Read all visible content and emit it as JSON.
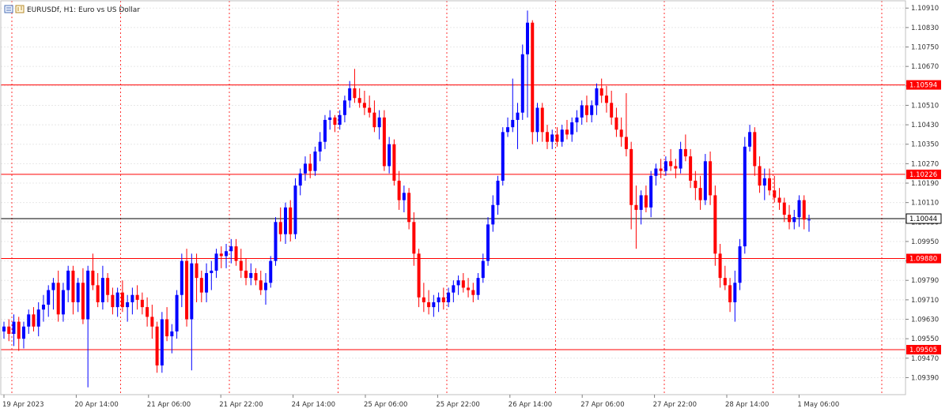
{
  "window": {
    "title": "EURUSDf, H1:  Euro vs US Dollar",
    "icon": "chart-window-icon"
  },
  "colors": {
    "bull": "#0000ff",
    "bear": "#ff0000",
    "grid": "#e8e8e8",
    "vgrid": "#ff0000",
    "level": "#ff0000",
    "current": "#000000",
    "axis": "#c0c0c0"
  },
  "chart_data": {
    "type": "candlestick",
    "symbol": "EURUSDf",
    "timeframe": "H1",
    "ylim": [
      1.0932,
      1.1094
    ],
    "y_ticks": [
      "1.10910",
      "1.10830",
      "1.10750",
      "1.10670",
      "1.10590",
      "1.10510",
      "1.10430",
      "1.10350",
      "1.10270",
      "1.10190",
      "1.10110",
      "1.10030",
      "1.09950",
      "1.09870",
      "1.09790",
      "1.09710",
      "1.09630",
      "1.09550",
      "1.09470",
      "1.09390"
    ],
    "x_labels": [
      "19 Apr 2023",
      "20 Apr 14:00",
      "21 Apr 06:00",
      "21 Apr 22:00",
      "24 Apr 14:00",
      "25 Apr 06:00",
      "25 Apr 22:00",
      "26 Apr 14:00",
      "27 Apr 06:00",
      "27 Apr 22:00",
      "28 Apr 14:00",
      "1 May 06:00"
    ],
    "levels": [
      {
        "price": 1.10594,
        "label": "1.10594"
      },
      {
        "price": 1.10226,
        "label": "1.10226"
      },
      {
        "price": 1.0988,
        "label": "1.09880"
      },
      {
        "price": 1.09505,
        "label": "1.09505"
      }
    ],
    "current": {
      "price": 1.10044,
      "label": "1.10044"
    },
    "candles": [
      [
        1.0958,
        1.0962,
        1.0955,
        1.096
      ],
      [
        1.096,
        1.0963,
        1.0954,
        1.0957
      ],
      [
        1.0957,
        1.0965,
        1.0952,
        1.0962
      ],
      [
        1.0962,
        1.0964,
        1.095,
        1.0955
      ],
      [
        1.0955,
        1.0962,
        1.0951,
        1.096
      ],
      [
        1.096,
        1.0967,
        1.0957,
        1.0965
      ],
      [
        1.0965,
        1.0968,
        1.0958,
        1.096
      ],
      [
        1.096,
        1.097,
        1.0956,
        1.0967
      ],
      [
        1.0967,
        1.0973,
        1.0962,
        1.0969
      ],
      [
        1.0969,
        1.0977,
        1.0964,
        1.0975
      ],
      [
        1.0975,
        1.098,
        1.0967,
        1.0978
      ],
      [
        1.0978,
        1.0983,
        1.0962,
        1.0965
      ],
      [
        1.0965,
        1.0978,
        1.0962,
        1.0975
      ],
      [
        1.0975,
        1.0985,
        1.097,
        1.0983
      ],
      [
        1.0983,
        1.0985,
        1.0965,
        1.097
      ],
      [
        1.097,
        1.098,
        1.0966,
        1.0978
      ],
      [
        1.0978,
        1.0984,
        1.0961,
        1.0963
      ],
      [
        1.0963,
        1.0985,
        1.0935,
        1.0983
      ],
      [
        1.0983,
        1.099,
        1.0975,
        1.0977
      ],
      [
        1.0977,
        1.0982,
        1.0968,
        1.097
      ],
      [
        1.097,
        1.0985,
        1.0967,
        1.098
      ],
      [
        1.098,
        1.0982,
        1.097,
        1.0973
      ],
      [
        1.0973,
        1.0976,
        1.0965,
        1.0968
      ],
      [
        1.0968,
        1.0976,
        1.0964,
        1.0974
      ],
      [
        1.0974,
        1.0979,
        1.0966,
        1.0968
      ],
      [
        1.0968,
        1.0973,
        1.0962,
        1.097
      ],
      [
        1.097,
        1.0976,
        1.0965,
        1.0973
      ],
      [
        1.0973,
        1.0977,
        1.0967,
        1.0971
      ],
      [
        1.0971,
        1.0974,
        1.0965,
        1.0968
      ],
      [
        1.0968,
        1.0972,
        1.096,
        1.0964
      ],
      [
        1.0964,
        1.0969,
        1.0955,
        1.096
      ],
      [
        1.096,
        1.0962,
        1.0941,
        1.0944
      ],
      [
        1.0944,
        1.0966,
        1.0941,
        1.0963
      ],
      [
        1.0963,
        1.0968,
        1.0954,
        1.0956
      ],
      [
        1.0956,
        1.0961,
        1.0949,
        1.0958
      ],
      [
        1.0958,
        1.0975,
        1.0955,
        1.0973
      ],
      [
        1.0973,
        1.099,
        1.0968,
        1.0987
      ],
      [
        1.0987,
        1.0992,
        1.096,
        1.0963
      ],
      [
        1.0963,
        1.099,
        1.0942,
        1.0986
      ],
      [
        1.0986,
        1.099,
        1.097,
        1.098
      ],
      [
        1.098,
        1.0983,
        1.097,
        1.0974
      ],
      [
        1.0974,
        1.0986,
        1.097,
        1.0982
      ],
      [
        1.0982,
        1.0987,
        1.0975,
        1.0983
      ],
      [
        1.0983,
        1.0992,
        1.098,
        1.099
      ],
      [
        1.099,
        1.0993,
        1.0984,
        1.0989
      ],
      [
        1.0989,
        1.0994,
        1.0984,
        1.0991
      ],
      [
        1.0991,
        1.0996,
        1.0986,
        1.0993
      ],
      [
        1.0993,
        1.0996,
        1.0985,
        1.0987
      ],
      [
        1.0987,
        1.0992,
        1.098,
        1.0983
      ],
      [
        1.0983,
        1.0988,
        1.0977,
        1.098
      ],
      [
        1.098,
        1.0986,
        1.0977,
        1.0982
      ],
      [
        1.0982,
        1.0984,
        1.0977,
        1.0979
      ],
      [
        1.0979,
        1.0983,
        1.0973,
        1.0975
      ],
      [
        1.0975,
        1.0982,
        1.0969,
        1.0978
      ],
      [
        1.0978,
        1.0989,
        1.0976,
        1.0987
      ],
      [
        1.0987,
        1.1005,
        1.0985,
        1.1003
      ],
      [
        1.1003,
        1.1009,
        1.0995,
        1.0998
      ],
      [
        1.0998,
        1.1011,
        1.0994,
        1.1009
      ],
      [
        1.1009,
        1.1012,
        1.0995,
        1.0998
      ],
      [
        1.0998,
        1.1021,
        1.0996,
        1.1018
      ],
      [
        1.1018,
        1.1025,
        1.1014,
        1.1023
      ],
      [
        1.1023,
        1.103,
        1.102,
        1.1027
      ],
      [
        1.1027,
        1.1031,
        1.1021,
        1.1024
      ],
      [
        1.1024,
        1.1034,
        1.1022,
        1.1032
      ],
      [
        1.1032,
        1.104,
        1.1028,
        1.1036
      ],
      [
        1.1036,
        1.1047,
        1.1033,
        1.1045
      ],
      [
        1.1045,
        1.1049,
        1.1041,
        1.1046
      ],
      [
        1.1046,
        1.1047,
        1.104,
        1.1043
      ],
      [
        1.1043,
        1.1049,
        1.1041,
        1.1047
      ],
      [
        1.1047,
        1.1055,
        1.1044,
        1.1053
      ],
      [
        1.1053,
        1.1061,
        1.105,
        1.1058
      ],
      [
        1.1058,
        1.1066,
        1.1052,
        1.1054
      ],
      [
        1.1054,
        1.1058,
        1.105,
        1.1052
      ],
      [
        1.1052,
        1.1057,
        1.1047,
        1.105
      ],
      [
        1.105,
        1.1055,
        1.1046,
        1.1048
      ],
      [
        1.1048,
        1.1053,
        1.104,
        1.1042
      ],
      [
        1.1042,
        1.1049,
        1.1037,
        1.1046
      ],
      [
        1.1046,
        1.1049,
        1.1024,
        1.1026
      ],
      [
        1.1026,
        1.1038,
        1.1023,
        1.1035
      ],
      [
        1.1035,
        1.1037,
        1.1018,
        1.102
      ],
      [
        1.102,
        1.1024,
        1.1008,
        1.1012
      ],
      [
        1.1012,
        1.1018,
        1.1007,
        1.1015
      ],
      [
        1.1015,
        1.1017,
        1.1,
        1.1003
      ],
      [
        1.1003,
        1.1007,
        1.0985,
        1.099
      ],
      [
        1.099,
        1.0992,
        1.0968,
        1.0972
      ],
      [
        1.0972,
        1.0978,
        1.0966,
        1.097
      ],
      [
        1.097,
        1.0975,
        1.0965,
        1.0968
      ],
      [
        1.0968,
        1.0973,
        1.0964,
        1.097
      ],
      [
        1.097,
        1.0974,
        1.0966,
        1.0972
      ],
      [
        1.0972,
        1.0976,
        1.0967,
        1.097
      ],
      [
        1.097,
        1.0976,
        1.0968,
        1.0974
      ],
      [
        1.0974,
        1.0979,
        1.097,
        1.0977
      ],
      [
        1.0977,
        1.0981,
        1.0973,
        1.0979
      ],
      [
        1.0979,
        1.0982,
        1.0974,
        1.0976
      ],
      [
        1.0976,
        1.098,
        1.0972,
        1.0975
      ],
      [
        1.0975,
        1.0978,
        1.097,
        1.0973
      ],
      [
        1.0973,
        1.0982,
        1.0971,
        1.098
      ],
      [
        1.098,
        1.099,
        1.0978,
        1.0987
      ],
      [
        1.0987,
        1.1005,
        1.0985,
        1.1002
      ],
      [
        1.1002,
        1.1014,
        1.0999,
        1.101
      ],
      [
        1.101,
        1.1022,
        1.1006,
        1.102
      ],
      [
        1.102,
        1.1042,
        1.1018,
        1.104
      ],
      [
        1.104,
        1.1046,
        1.1038,
        1.1042
      ],
      [
        1.1042,
        1.1062,
        1.104,
        1.1045
      ],
      [
        1.1045,
        1.1052,
        1.1033,
        1.1048
      ],
      [
        1.1048,
        1.1076,
        1.1045,
        1.1072
      ],
      [
        1.1072,
        1.109,
        1.1046,
        1.1085
      ],
      [
        1.1085,
        1.1086,
        1.1035,
        1.104
      ],
      [
        1.104,
        1.1052,
        1.1036,
        1.105
      ],
      [
        1.105,
        1.1052,
        1.1036,
        1.104
      ],
      [
        1.104,
        1.1043,
        1.1033,
        1.1036
      ],
      [
        1.1036,
        1.1041,
        1.1033,
        1.1039
      ],
      [
        1.1039,
        1.1042,
        1.1034,
        1.1036
      ],
      [
        1.1036,
        1.1043,
        1.1034,
        1.1041
      ],
      [
        1.1041,
        1.1045,
        1.1037,
        1.1039
      ],
      [
        1.1039,
        1.1046,
        1.1036,
        1.1044
      ],
      [
        1.1044,
        1.1049,
        1.104,
        1.1046
      ],
      [
        1.1046,
        1.1053,
        1.1043,
        1.1051
      ],
      [
        1.1051,
        1.1055,
        1.1044,
        1.1047
      ],
      [
        1.1047,
        1.1053,
        1.1044,
        1.1051
      ],
      [
        1.1051,
        1.106,
        1.1047,
        1.1058
      ],
      [
        1.1058,
        1.1062,
        1.1052,
        1.1055
      ],
      [
        1.1055,
        1.1059,
        1.1048,
        1.1052
      ],
      [
        1.1052,
        1.1057,
        1.1043,
        1.1046
      ],
      [
        1.1046,
        1.105,
        1.1038,
        1.1041
      ],
      [
        1.1041,
        1.1046,
        1.1034,
        1.1038
      ],
      [
        1.1038,
        1.1056,
        1.103,
        1.1033
      ],
      [
        1.1033,
        1.1036,
        1.1,
        1.101
      ],
      [
        1.101,
        1.1018,
        1.0992,
        1.1008
      ],
      [
        1.1008,
        1.1016,
        1.1002,
        1.1014
      ],
      [
        1.1014,
        1.1018,
        1.1007,
        1.1009
      ],
      [
        1.1009,
        1.1024,
        1.1005,
        1.1022
      ],
      [
        1.1022,
        1.1027,
        1.1018,
        1.1025
      ],
      [
        1.1025,
        1.1029,
        1.1021,
        1.1024
      ],
      [
        1.1024,
        1.103,
        1.1022,
        1.1028
      ],
      [
        1.1028,
        1.1033,
        1.1024,
        1.1026
      ],
      [
        1.1026,
        1.1029,
        1.1021,
        1.1025
      ],
      [
        1.1025,
        1.1036,
        1.1023,
        1.1033
      ],
      [
        1.1033,
        1.1039,
        1.1028,
        1.103
      ],
      [
        1.103,
        1.1033,
        1.1017,
        1.102
      ],
      [
        1.102,
        1.1024,
        1.1012,
        1.1017
      ],
      [
        1.1017,
        1.1022,
        1.1008,
        1.1012
      ],
      [
        1.1012,
        1.1031,
        1.101,
        1.1028
      ],
      [
        1.1028,
        1.1032,
        1.101,
        1.1014
      ],
      [
        1.1014,
        1.1018,
        1.0985,
        1.099
      ],
      [
        1.099,
        1.0994,
        1.0976,
        1.098
      ],
      [
        1.098,
        1.0985,
        1.0975,
        1.0977
      ],
      [
        1.0977,
        1.098,
        1.0966,
        1.097
      ],
      [
        1.097,
        1.0983,
        1.0962,
        1.0978
      ],
      [
        1.0978,
        1.0996,
        1.0975,
        1.0993
      ],
      [
        1.0993,
        1.1038,
        1.099,
        1.1034
      ],
      [
        1.1034,
        1.1043,
        1.1032,
        1.104
      ],
      [
        1.104,
        1.1042,
        1.1022,
        1.1026
      ],
      [
        1.1026,
        1.103,
        1.1015,
        1.1018
      ],
      [
        1.1018,
        1.1025,
        1.1012,
        1.1021
      ],
      [
        1.1021,
        1.1025,
        1.1014,
        1.1016
      ],
      [
        1.1016,
        1.1022,
        1.1011,
        1.1013
      ],
      [
        1.1013,
        1.1017,
        1.1008,
        1.1011
      ],
      [
        1.1011,
        1.1013,
        1.1003,
        1.1006
      ],
      [
        1.1006,
        1.101,
        1.1,
        1.1003
      ],
      [
        1.1003,
        1.1008,
        1.1,
        1.1005
      ],
      [
        1.1005,
        1.1014,
        1.1001,
        1.1012
      ],
      [
        1.1012,
        1.1014,
        1.1,
        1.1004
      ],
      [
        1.1004,
        1.1006,
        1.0999,
        1.1004
      ]
    ]
  }
}
